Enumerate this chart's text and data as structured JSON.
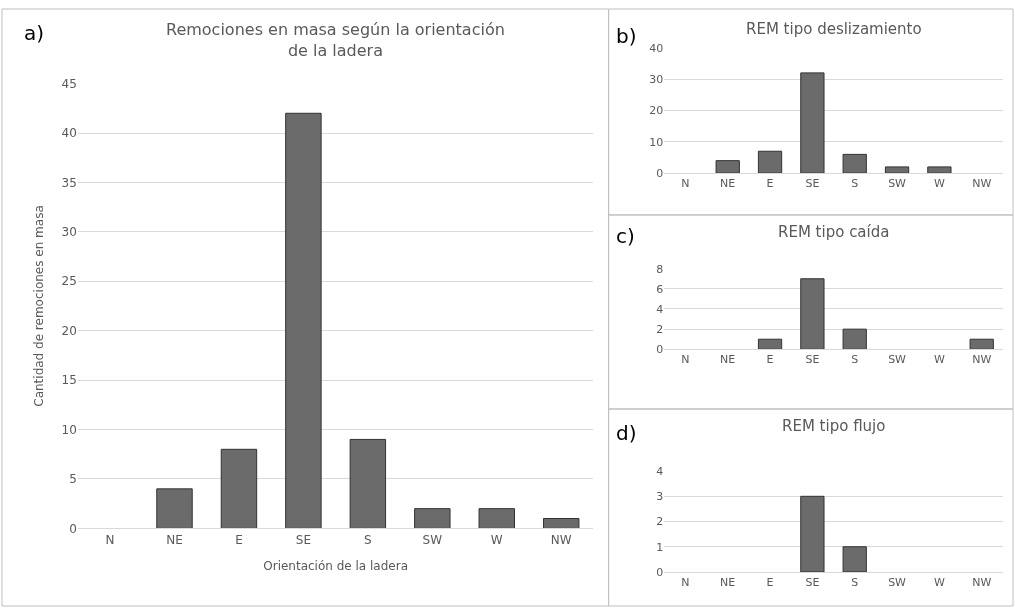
{
  "chart_data": [
    {
      "type": "bar",
      "title": "Remociones en masa según la orientación\nde la ladera",
      "xlabel": "Orientación de la ladera",
      "ylabel": "Cantidad de remociones en masa",
      "annotations": [
        "a)"
      ],
      "categories": [
        "N",
        "NE",
        "E",
        "SE",
        "S",
        "SW",
        "W",
        "NW"
      ],
      "values": [
        0,
        4,
        8,
        42,
        9,
        2,
        2,
        1
      ],
      "color": "#6b6b6b",
      "ylim": [
        0,
        45
      ],
      "yticks": [
        0,
        5,
        10,
        15,
        20,
        25,
        30,
        35,
        40,
        45
      ],
      "grid": "y"
    },
    {
      "type": "bar",
      "title": "REM tipo deslizamiento",
      "annotations": [
        "b)"
      ],
      "categories": [
        "N",
        "NE",
        "E",
        "SE",
        "S",
        "SW",
        "W",
        "NW"
      ],
      "values": [
        0,
        4,
        7,
        32,
        6,
        2,
        2,
        0
      ],
      "color": "#6b6b6b",
      "ylim": [
        0,
        40
      ],
      "yticks": [
        0,
        10,
        20,
        30,
        40
      ],
      "grid": "y"
    },
    {
      "type": "bar",
      "title": "REM tipo caída",
      "annotations": [
        "c)"
      ],
      "categories": [
        "N",
        "NE",
        "E",
        "SE",
        "S",
        "SW",
        "W",
        "NW"
      ],
      "values": [
        0,
        0,
        1,
        7,
        2,
        0,
        0,
        1
      ],
      "color": "#6b6b6b",
      "ylim": [
        0,
        8
      ],
      "yticks": [
        0,
        2,
        4,
        6,
        8
      ],
      "grid": "y"
    },
    {
      "type": "bar",
      "title": "REM tipo flujo",
      "annotations": [
        "d)"
      ],
      "categories": [
        "N",
        "NE",
        "E",
        "SE",
        "S",
        "SW",
        "W",
        "NW"
      ],
      "values": [
        0,
        0,
        0,
        3,
        1,
        0,
        0,
        0
      ],
      "color": "#6b6b6b",
      "ylim": [
        0,
        4
      ],
      "yticks": [
        0,
        1,
        2,
        3,
        4
      ],
      "grid": "y"
    }
  ]
}
